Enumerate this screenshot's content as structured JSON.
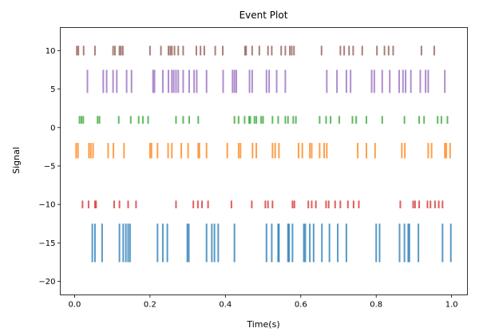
{
  "chart_data": {
    "type": "eventplot",
    "title": "Event Plot",
    "xlabel": "Time(s)",
    "ylabel": "Signal",
    "xlim": [
      -0.038,
      1.042
    ],
    "ylim": [
      -21.76,
      13.0
    ],
    "xticks": [
      "0.0",
      "0.2",
      "0.4",
      "0.6",
      "0.8",
      "1.0"
    ],
    "xtick_values": [
      0,
      0.2,
      0.4,
      0.6,
      0.8,
      1.0
    ],
    "yticks": [
      "10",
      "5",
      "0",
      "−5",
      "−10",
      "−15",
      "−20"
    ],
    "ytick_values": [
      10,
      5,
      0,
      -5,
      -10,
      -15,
      -20
    ],
    "grid": false,
    "series": [
      {
        "color": "#1f77b4",
        "lineoffset": -15,
        "linelength": 5,
        "events": [
          0.047,
          0.054,
          0.073,
          0.119,
          0.129,
          0.136,
          0.142,
          0.147,
          0.22,
          0.234,
          0.246,
          0.299,
          0.303,
          0.35,
          0.364,
          0.371,
          0.381,
          0.424,
          0.509,
          0.523,
          0.54,
          0.542,
          0.566,
          0.569,
          0.578,
          0.608,
          0.612,
          0.624,
          0.634,
          0.656,
          0.676,
          0.698,
          0.721,
          0.8,
          0.809,
          0.862,
          0.875,
          0.885,
          0.888,
          0.912,
          0.976,
          0.998
        ]
      },
      {
        "color": "#d62728",
        "lineoffset": -10,
        "linelength": 1,
        "events": [
          0.021,
          0.037,
          0.054,
          0.057,
          0.105,
          0.119,
          0.142,
          0.163,
          0.269,
          0.315,
          0.327,
          0.338,
          0.354,
          0.416,
          0.47,
          0.506,
          0.513,
          0.525,
          0.578,
          0.583,
          0.62,
          0.629,
          0.64,
          0.667,
          0.674,
          0.691,
          0.705,
          0.725,
          0.74,
          0.754,
          0.864,
          0.898,
          0.903,
          0.914,
          0.936,
          0.944,
          0.956,
          0.966,
          0.976
        ]
      },
      {
        "color": "#ff7f0e",
        "lineoffset": -3,
        "linelength": 2,
        "events": [
          0.004,
          0.009,
          0.038,
          0.043,
          0.049,
          0.089,
          0.103,
          0.131,
          0.2,
          0.204,
          0.22,
          0.248,
          0.258,
          0.283,
          0.301,
          0.328,
          0.331,
          0.35,
          0.405,
          0.435,
          0.44,
          0.472,
          0.482,
          0.525,
          0.532,
          0.542,
          0.594,
          0.604,
          0.624,
          0.629,
          0.65,
          0.662,
          0.669,
          0.751,
          0.774,
          0.797,
          0.868,
          0.876,
          0.938,
          0.947,
          0.982,
          0.986,
          0.996
        ]
      },
      {
        "color": "#2ca02c",
        "lineoffset": 1,
        "linelength": 1,
        "events": [
          0.013,
          0.018,
          0.023,
          0.061,
          0.066,
          0.117,
          0.149,
          0.17,
          0.181,
          0.195,
          0.269,
          0.288,
          0.304,
          0.328,
          0.424,
          0.435,
          0.451,
          0.463,
          0.466,
          0.477,
          0.482,
          0.495,
          0.5,
          0.525,
          0.54,
          0.559,
          0.566,
          0.58,
          0.587,
          0.65,
          0.667,
          0.679,
          0.702,
          0.737,
          0.747,
          0.774,
          0.816,
          0.875,
          0.914,
          0.927,
          0.963,
          0.973,
          0.989
        ]
      },
      {
        "color": "#9467bd",
        "lineoffset": 6,
        "linelength": 3,
        "events": [
          0.034,
          0.076,
          0.085,
          0.102,
          0.112,
          0.138,
          0.151,
          0.208,
          0.212,
          0.234,
          0.249,
          0.258,
          0.263,
          0.269,
          0.275,
          0.288,
          0.304,
          0.317,
          0.324,
          0.35,
          0.394,
          0.419,
          0.424,
          0.429,
          0.464,
          0.471,
          0.509,
          0.516,
          0.536,
          0.559,
          0.669,
          0.696,
          0.721,
          0.732,
          0.788,
          0.795,
          0.816,
          0.836,
          0.861,
          0.871,
          0.878,
          0.892,
          0.917,
          0.931,
          0.938,
          0.982
        ]
      },
      {
        "color": "#8c564b",
        "lineoffset": 10,
        "linelength": 1.25,
        "events": [
          0.006,
          0.01,
          0.024,
          0.054,
          0.102,
          0.107,
          0.119,
          0.123,
          0.128,
          0.2,
          0.229,
          0.249,
          0.254,
          0.258,
          0.265,
          0.275,
          0.288,
          0.323,
          0.334,
          0.344,
          0.373,
          0.393,
          0.452,
          0.455,
          0.471,
          0.49,
          0.513,
          0.523,
          0.548,
          0.559,
          0.571,
          0.576,
          0.582,
          0.655,
          0.705,
          0.715,
          0.728,
          0.739,
          0.763,
          0.802,
          0.822,
          0.833,
          0.845,
          0.92,
          0.954
        ]
      }
    ]
  }
}
